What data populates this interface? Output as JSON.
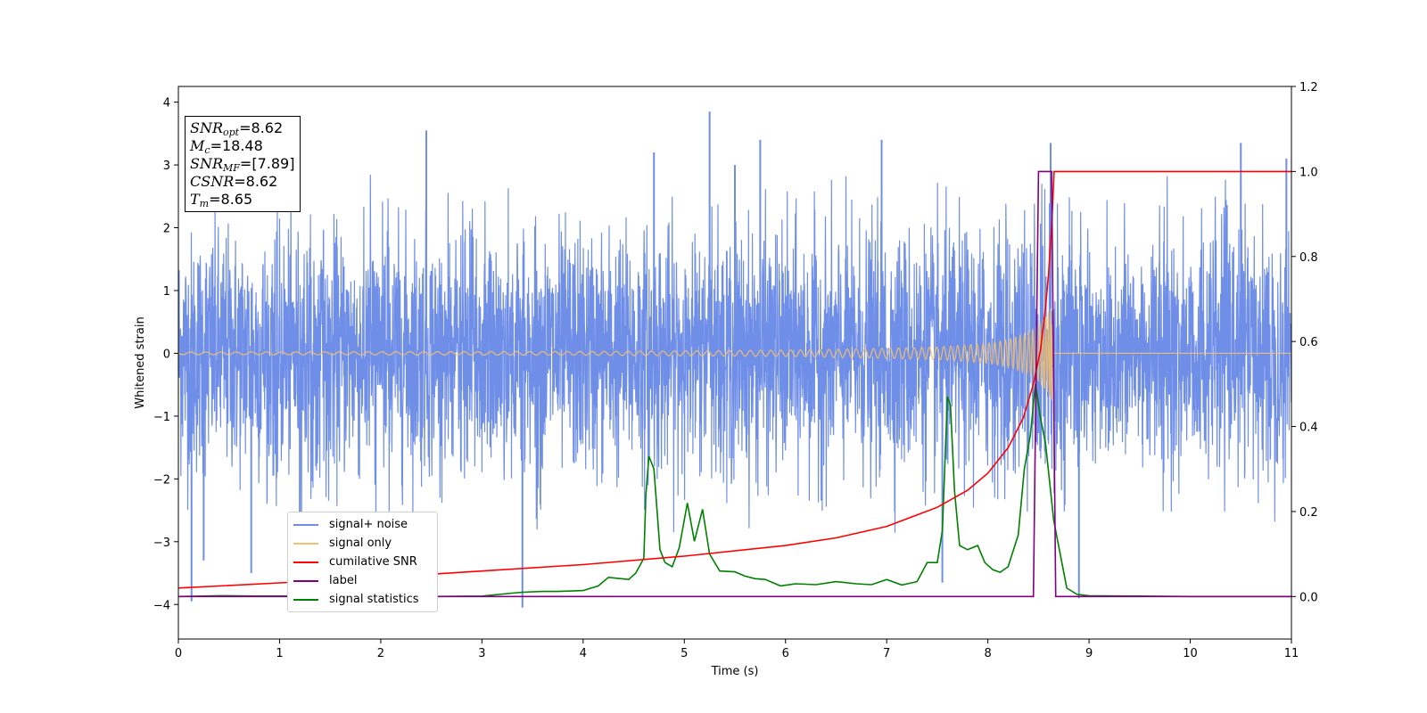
{
  "chart_data": {
    "type": "line",
    "title": "",
    "xlabel": "Time (s)",
    "ylabel": "Whitened strain",
    "xlim": [
      0,
      11
    ],
    "ylim": [
      -4.55,
      4.25
    ],
    "y2lim": [
      -0.1,
      1.2
    ],
    "xticks": [
      "0",
      "1",
      "2",
      "3",
      "4",
      "5",
      "6",
      "7",
      "8",
      "9",
      "10",
      "11"
    ],
    "yticks": [
      "−4",
      "−3",
      "−2",
      "−1",
      "0",
      "1",
      "2",
      "3",
      "4"
    ],
    "y2ticks": [
      "0.0",
      "0.2",
      "0.4",
      "0.6",
      "0.8",
      "1.0",
      "1.2"
    ],
    "grid": false,
    "legend_position": "lower-left",
    "colors": {
      "noise": "#6f8ee8",
      "signal": "#f5c16a",
      "cumsnr": "#ff0000",
      "label": "#800080",
      "stats": "#008000"
    },
    "series": [
      {
        "name": "signal+ noise",
        "axis": "left",
        "description": "whitened noise, amplitude about ±2.3 with excursions to ±3.9",
        "envelope_abs": 2.3,
        "peaks": [
          [
            0.13,
            -3.95
          ],
          [
            0.25,
            -3.3
          ],
          [
            0.72,
            -3.5
          ],
          [
            1.2,
            -3.05
          ],
          [
            2.45,
            3.55
          ],
          [
            3.4,
            -4.05
          ],
          [
            4.7,
            3.2
          ],
          [
            5.25,
            3.85
          ],
          [
            5.5,
            3.0
          ],
          [
            5.75,
            3.4
          ],
          [
            6.95,
            3.4
          ],
          [
            7.55,
            -3.65
          ],
          [
            8.62,
            3.35
          ],
          [
            8.9,
            -3.9
          ],
          [
            10.5,
            3.35
          ],
          [
            10.95,
            3.1
          ]
        ]
      },
      {
        "name": "signal only",
        "axis": "left",
        "description": "chirp, amplitude rising toward merger at 8.65 s",
        "x": [
          0,
          4,
          6,
          7,
          7.5,
          8,
          8.2,
          8.4,
          8.5,
          8.58,
          8.63,
          8.65
        ],
        "amplitude": [
          0.02,
          0.03,
          0.05,
          0.08,
          0.1,
          0.16,
          0.22,
          0.33,
          0.45,
          0.6,
          0.75,
          0.0
        ]
      },
      {
        "name": "cumilative SNR",
        "axis": "right",
        "x": [
          0,
          1,
          2,
          3,
          4,
          5,
          6,
          6.5,
          7,
          7.5,
          7.8,
          8.0,
          8.2,
          8.35,
          8.45,
          8.52,
          8.57,
          8.6,
          8.63,
          8.655,
          8.67,
          11
        ],
        "y": [
          0.02,
          0.032,
          0.045,
          0.06,
          0.075,
          0.095,
          0.12,
          0.138,
          0.165,
          0.21,
          0.25,
          0.29,
          0.35,
          0.42,
          0.5,
          0.58,
          0.68,
          0.76,
          0.87,
          1.0,
          1.0,
          1.0
        ]
      },
      {
        "name": "label",
        "axis": "right",
        "x": [
          0,
          8.45,
          8.5,
          8.63,
          8.67,
          11
        ],
        "y": [
          0,
          0,
          1,
          1,
          0,
          0
        ]
      },
      {
        "name": "signal statistics",
        "axis": "right",
        "x": [
          0,
          0.4,
          0.8,
          1.5,
          2.5,
          3.0,
          3.3,
          3.4,
          3.6,
          3.75,
          4.0,
          4.15,
          4.25,
          4.45,
          4.52,
          4.6,
          4.62,
          4.65,
          4.7,
          4.76,
          4.81,
          4.88,
          4.95,
          5.03,
          5.1,
          5.18,
          5.25,
          5.35,
          5.5,
          5.6,
          5.7,
          5.8,
          5.95,
          6.1,
          6.3,
          6.5,
          6.7,
          6.85,
          7.0,
          7.15,
          7.3,
          7.4,
          7.5,
          7.55,
          7.6,
          7.63,
          7.67,
          7.72,
          7.8,
          7.9,
          7.97,
          8.05,
          8.12,
          8.2,
          8.3,
          8.36,
          8.42,
          8.47,
          8.52,
          8.57,
          8.65,
          8.78,
          8.88,
          9.0,
          9.5,
          10.0,
          11.0
        ],
        "y": [
          0,
          0.002,
          0.001,
          0.001,
          0,
          0.001,
          0.008,
          0.01,
          0.012,
          0.012,
          0.014,
          0.025,
          0.045,
          0.04,
          0.055,
          0.09,
          0.24,
          0.33,
          0.3,
          0.11,
          0.08,
          0.07,
          0.115,
          0.22,
          0.13,
          0.205,
          0.1,
          0.06,
          0.058,
          0.048,
          0.042,
          0.04,
          0.025,
          0.03,
          0.028,
          0.035,
          0.03,
          0.028,
          0.04,
          0.027,
          0.035,
          0.08,
          0.08,
          0.155,
          0.47,
          0.45,
          0.25,
          0.12,
          0.11,
          0.12,
          0.08,
          0.063,
          0.057,
          0.07,
          0.145,
          0.3,
          0.38,
          0.5,
          0.42,
          0.36,
          0.18,
          0.02,
          0.005,
          0.002,
          0.001,
          0,
          0
        ]
      }
    ]
  },
  "infobox": {
    "snr_opt_label": "SNR",
    "snr_opt_sub": "opt",
    "snr_opt_value": "=8.62",
    "mc_label": "M",
    "mc_sub": "c",
    "mc_value": "=18.48",
    "snr_mf_label": "SNR",
    "snr_mf_sub": "MF",
    "snr_mf_value": "=[7.89]",
    "csnr_label": "CSNR",
    "csnr_value": "=8.62",
    "tm_label": "T",
    "tm_sub": "m",
    "tm_value": "=8.65"
  }
}
